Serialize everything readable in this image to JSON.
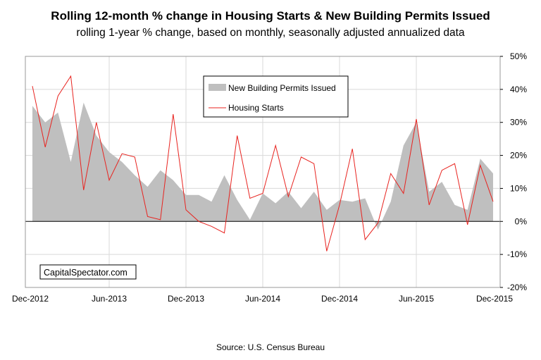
{
  "title": "Rolling 12-month % change in Housing Starts & New Building Permits Issued",
  "subtitle": "rolling 1-year % change, based on monthly,  seasonally adjusted annualized data",
  "source": "Source: U.S. Census Bureau",
  "watermark": "CapitalSpectator.com",
  "colors": {
    "permits_fill": "#bfbfbf",
    "starts_line": "#e8231f",
    "plot_border": "#999999",
    "grid": "#d9d9d9",
    "zero_line": "#000000"
  },
  "chart_data": {
    "type": "line",
    "title": "Rolling 12-month % change in Housing Starts & New Building Permits Issued",
    "subtitle": "rolling 1-year % change, based on monthly,  seasonally adjusted annualized data",
    "x_start": "Dec-2012",
    "x_end": "Dec-2015",
    "x_tick_labels": [
      "Dec-2012",
      "Jun-2013",
      "Dec-2013",
      "Jun-2014",
      "Dec-2014",
      "Jun-2015",
      "Dec-2015"
    ],
    "y_axis_side": "right",
    "ylim": [
      -20,
      50
    ],
    "y_ticks": [
      -20,
      -10,
      0,
      10,
      20,
      30,
      40,
      50
    ],
    "y_tick_labels": [
      "-20%",
      "-10%",
      "0%",
      "10%",
      "20%",
      "30%",
      "40%",
      "50%"
    ],
    "grid": true,
    "legend_position": "top-center",
    "x": [
      "Dec-2012",
      "Jan-2013",
      "Feb-2013",
      "Mar-2013",
      "Apr-2013",
      "May-2013",
      "Jun-2013",
      "Jul-2013",
      "Aug-2013",
      "Sep-2013",
      "Oct-2013",
      "Nov-2013",
      "Dec-2013",
      "Jan-2014",
      "Feb-2014",
      "Mar-2014",
      "Apr-2014",
      "May-2014",
      "Jun-2014",
      "Jul-2014",
      "Aug-2014",
      "Sep-2014",
      "Oct-2014",
      "Nov-2014",
      "Dec-2014",
      "Jan-2015",
      "Feb-2015",
      "Mar-2015",
      "Apr-2015",
      "May-2015",
      "Jun-2015",
      "Jul-2015",
      "Aug-2015",
      "Sep-2015",
      "Oct-2015",
      "Nov-2015",
      "Dec-2015"
    ],
    "series": [
      {
        "name": "New Building Permits Issued",
        "type": "area",
        "color": "#bfbfbf",
        "values": [
          35,
          30,
          33,
          18,
          36,
          26,
          21,
          18,
          14,
          10.5,
          15.5,
          12.5,
          8,
          8,
          6,
          14,
          6.5,
          0.5,
          8.5,
          5.5,
          9,
          4,
          9,
          3.5,
          6.5,
          6,
          7,
          -2.5,
          6,
          23,
          30,
          9,
          12,
          5,
          3.5,
          19,
          14.5
        ]
      },
      {
        "name": "Housing Starts",
        "type": "line",
        "color": "#e8231f",
        "values": [
          41,
          22.5,
          38,
          44,
          9.5,
          30,
          12.5,
          20.5,
          19.5,
          1.5,
          0.5,
          32.5,
          3.5,
          0,
          -1.5,
          -3.5,
          26,
          7,
          8.5,
          23,
          7.5,
          19.5,
          17.5,
          -9,
          5,
          22,
          -5.5,
          -0.5,
          14.5,
          8.5,
          31,
          5,
          15.5,
          17.5,
          -1,
          17,
          6
        ]
      }
    ]
  }
}
